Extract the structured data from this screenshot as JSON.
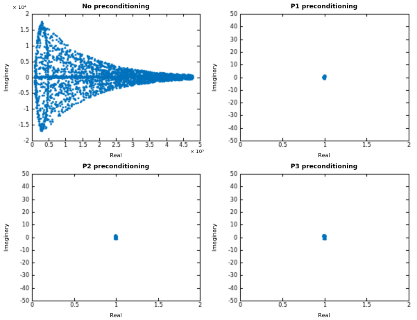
{
  "figure": {
    "bg": "#ffffff",
    "marker_color": "#0072BD",
    "axis_color": "#000000",
    "tick_label_color": "#000000"
  },
  "chart_data": [
    {
      "type": "scatter",
      "title": "No preconditioning",
      "xlabel": "Real",
      "ylabel": "Imaginary",
      "xlim": [
        0,
        500000
      ],
      "ylim": [
        -20000,
        20000
      ],
      "grid": false,
      "legend": null,
      "x_exponent_label": "× 10⁵",
      "y_exponent_label": "× 10⁴",
      "xticks": [
        0,
        50000,
        100000,
        150000,
        200000,
        250000,
        300000,
        350000,
        400000,
        450000,
        500000
      ],
      "xtick_labels": [
        "0",
        "0.5",
        "1",
        "1.5",
        "2",
        "2.5",
        "3",
        "3.5",
        "4",
        "4.5",
        "5"
      ],
      "yticks": [
        -20000,
        -15000,
        -10000,
        -5000,
        0,
        5000,
        10000,
        15000,
        20000
      ],
      "ytick_labels": [
        "-2",
        "-1.5",
        "-1",
        "-0.5",
        "0",
        "0.5",
        "1",
        "1.5",
        "2"
      ],
      "envelope_estimate": {
        "real": [
          30000,
          100000,
          200000,
          300000,
          400000,
          480000
        ],
        "max_abs_imag": [
          17000,
          10500,
          6000,
          3300,
          1500,
          400
        ]
      },
      "series": [
        {
          "name": "eigenvalues",
          "mode": "funnel",
          "seed": 7,
          "n_cloud": 1400,
          "n_band": 900,
          "n_arc": 260,
          "n_line": 420,
          "x_min": 8000,
          "x_max": 480000,
          "ramp_end": 30000,
          "amp": 17200,
          "decay": 140000,
          "arc_cx": 30000,
          "arc_rx": 20000,
          "levels": [
            -1,
            -0.72,
            -0.45,
            -0.2,
            0,
            0.2,
            0.45,
            0.72,
            1
          ],
          "marker_px": 1.5
        }
      ]
    },
    {
      "type": "scatter",
      "title": "P1 preconditioning",
      "xlabel": "Real",
      "ylabel": "Imaginary",
      "xlim": [
        0,
        2
      ],
      "ylim": [
        -50,
        50
      ],
      "grid": false,
      "legend": null,
      "xticks": [
        0,
        0.5,
        1,
        1.5,
        2
      ],
      "xtick_labels": [
        "0",
        "0.5",
        "1",
        "1.5",
        "2"
      ],
      "yticks": [
        -50,
        -40,
        -30,
        -20,
        -10,
        0,
        10,
        20,
        30,
        40,
        50
      ],
      "ytick_labels": [
        "-50",
        "-40",
        "-30",
        "-20",
        "-10",
        "0",
        "10",
        "20",
        "30",
        "40",
        "50"
      ],
      "series": [
        {
          "name": "eigenvalues",
          "mode": "cluster",
          "seed": 3,
          "cx": 1,
          "cy": 0,
          "rx": 0.013,
          "ry": 1.4,
          "n": 45,
          "marker_px": 1.6
        }
      ]
    },
    {
      "type": "scatter",
      "title": "P2 preconditioning",
      "xlabel": "Real",
      "ylabel": "Imaginary",
      "xlim": [
        0,
        2
      ],
      "ylim": [
        -50,
        50
      ],
      "grid": false,
      "legend": null,
      "xticks": [
        0,
        0.5,
        1,
        1.5,
        2
      ],
      "xtick_labels": [
        "0",
        "0.5",
        "1",
        "1.5",
        "2"
      ],
      "yticks": [
        -50,
        -40,
        -30,
        -20,
        -10,
        0,
        10,
        20,
        30,
        40,
        50
      ],
      "ytick_labels": [
        "-50",
        "-40",
        "-30",
        "-20",
        "-10",
        "0",
        "10",
        "20",
        "30",
        "40",
        "50"
      ],
      "series": [
        {
          "name": "eigenvalues",
          "mode": "cluster",
          "seed": 5,
          "cx": 1,
          "cy": 0,
          "rx": 0.013,
          "ry": 1.6,
          "n": 45,
          "marker_px": 1.6
        }
      ]
    },
    {
      "type": "scatter",
      "title": "P3 preconditioning",
      "xlabel": "Real",
      "ylabel": "Imaginary",
      "xlim": [
        0,
        2
      ],
      "ylim": [
        -50,
        50
      ],
      "grid": false,
      "legend": null,
      "xticks": [
        0,
        0.5,
        1,
        1.5,
        2
      ],
      "xtick_labels": [
        "0",
        "0.5",
        "1",
        "1.5",
        "2"
      ],
      "yticks": [
        -50,
        -40,
        -30,
        -20,
        -10,
        0,
        10,
        20,
        30,
        40,
        50
      ],
      "ytick_labels": [
        "-50",
        "-40",
        "-30",
        "-20",
        "-10",
        "0",
        "10",
        "20",
        "30",
        "40",
        "50"
      ],
      "series": [
        {
          "name": "eigenvalues",
          "mode": "cluster",
          "seed": 9,
          "cx": 1,
          "cy": 0,
          "rx": 0.015,
          "ry": 1.8,
          "n": 45,
          "marker_px": 1.6
        }
      ]
    }
  ]
}
